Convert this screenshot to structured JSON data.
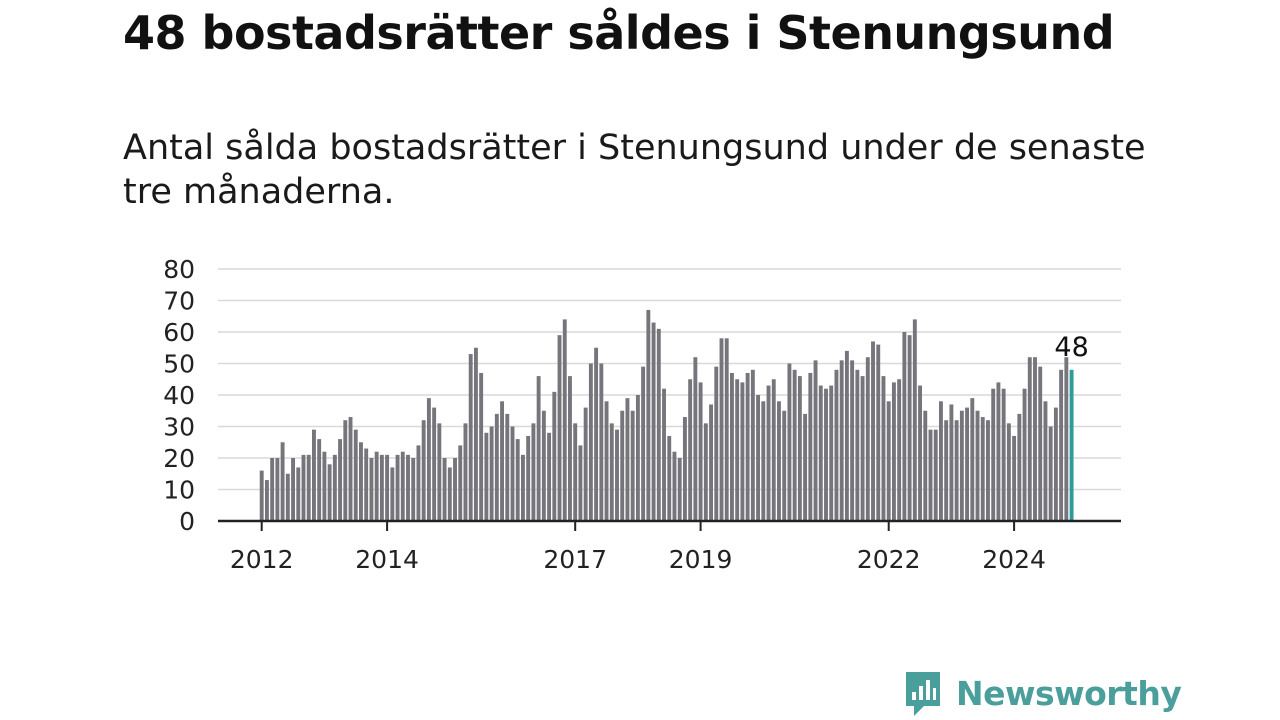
{
  "title": "48 bostadsrätter såldes i Stenungsund",
  "subtitle": "Antal sålda bostadsrätter i Stenungsund under de senaste tre månaderna.",
  "brand": {
    "name": "Newsworthy",
    "color": "#4a9e9b"
  },
  "colors": {
    "bar": "#76757c",
    "highlight": "#2a9d9a",
    "grid": "#d9d9d9",
    "axis": "#222222"
  },
  "chart_data": {
    "type": "bar",
    "title": "48 bostadsrätter såldes i Stenungsund",
    "xlabel": "",
    "ylabel": "",
    "ylim": [
      0,
      80
    ],
    "yticks": [
      0,
      10,
      20,
      30,
      40,
      50,
      60,
      70,
      80
    ],
    "xtick_labels": [
      {
        "label": "2012",
        "index": 0
      },
      {
        "label": "2014",
        "index": 24
      },
      {
        "label": "2017",
        "index": 60
      },
      {
        "label": "2019",
        "index": 84
      },
      {
        "label": "2022",
        "index": 120
      },
      {
        "label": "2024",
        "index": 144
      }
    ],
    "values": [
      16,
      13,
      20,
      20,
      25,
      15,
      20,
      17,
      21,
      21,
      29,
      26,
      22,
      18,
      21,
      26,
      32,
      33,
      29,
      25,
      23,
      20,
      22,
      21,
      21,
      17,
      21,
      22,
      21,
      20,
      24,
      32,
      39,
      36,
      31,
      20,
      17,
      20,
      24,
      31,
      53,
      55,
      47,
      28,
      30,
      34,
      38,
      34,
      30,
      26,
      21,
      27,
      31,
      46,
      35,
      28,
      41,
      59,
      64,
      46,
      31,
      24,
      36,
      50,
      55,
      50,
      38,
      31,
      29,
      35,
      39,
      35,
      40,
      49,
      67,
      63,
      61,
      42,
      27,
      22,
      20,
      33,
      45,
      52,
      44,
      31,
      37,
      49,
      58,
      58,
      47,
      45,
      44,
      47,
      48,
      40,
      38,
      43,
      45,
      38,
      35,
      50,
      48,
      46,
      34,
      47,
      51,
      43,
      42,
      43,
      48,
      51,
      54,
      51,
      48,
      46,
      52,
      57,
      56,
      46,
      38,
      44,
      45,
      60,
      59,
      64,
      43,
      35,
      29,
      29,
      38,
      32,
      37,
      32,
      35,
      36,
      39,
      35,
      33,
      32,
      42,
      44,
      42,
      31,
      27,
      34,
      42,
      52,
      52,
      49,
      38,
      30,
      36,
      48,
      52,
      48
    ],
    "highlight_index": 155,
    "annotation": "48"
  }
}
